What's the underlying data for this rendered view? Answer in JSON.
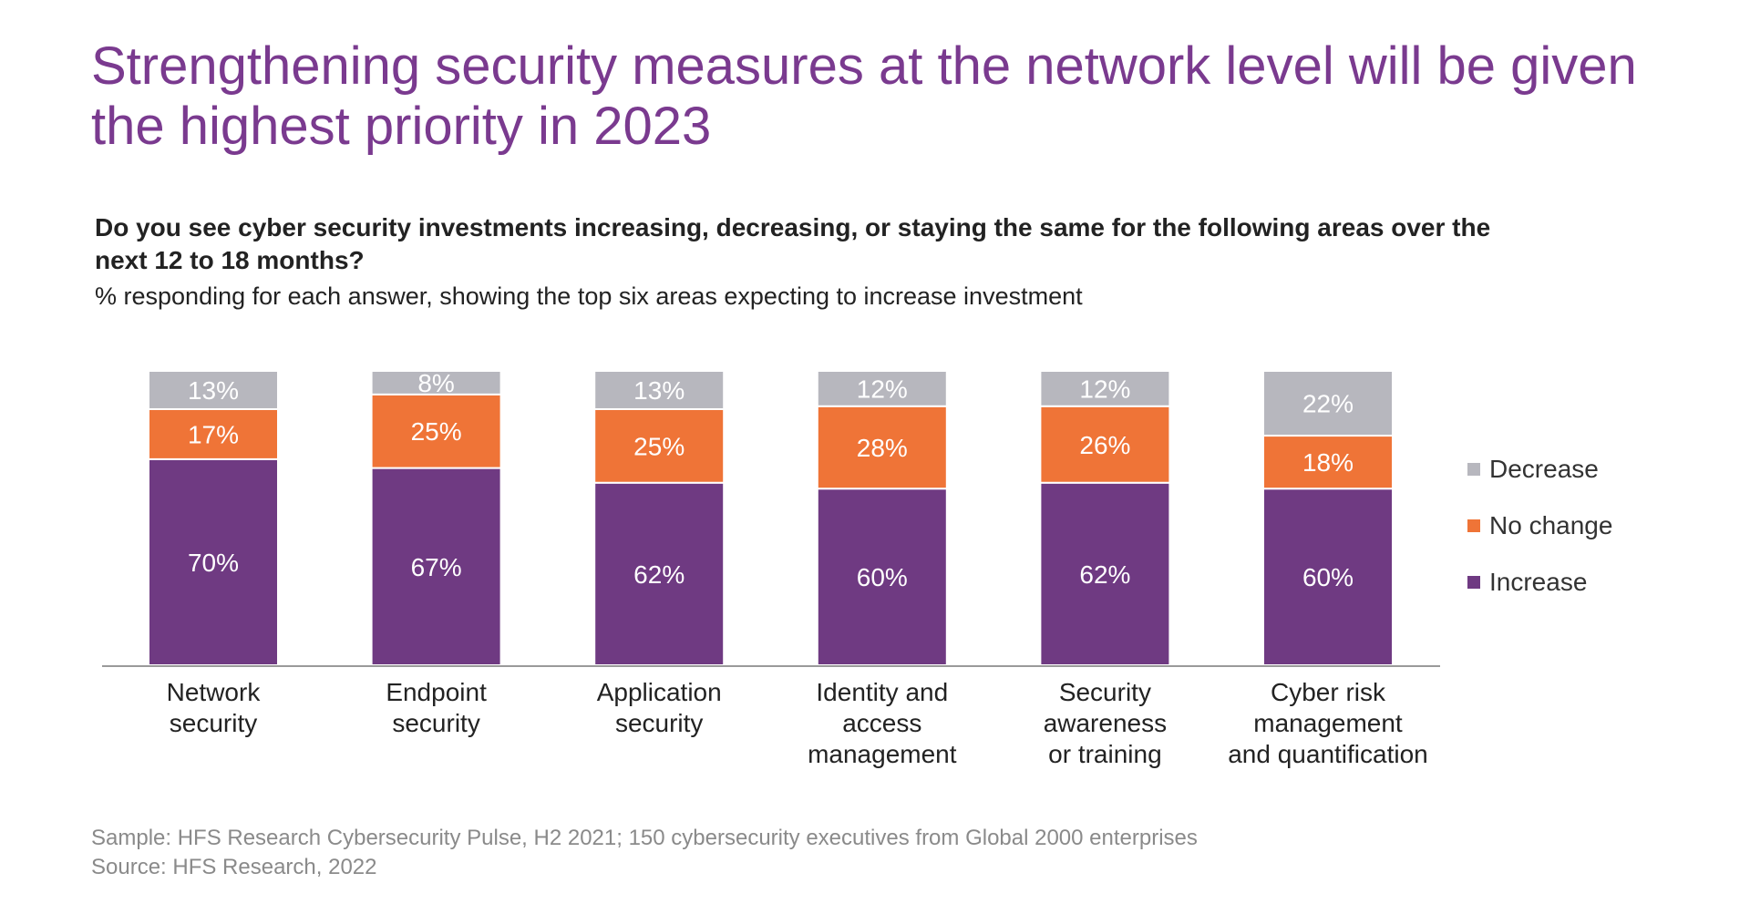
{
  "title": "Strengthening security measures at the network level will be given the highest priority in 2023",
  "question": "Do you see cyber security investments increasing, decreasing, or staying the same for the following areas over the next 12 to 18 months?",
  "subtitle": "% responding for each answer, showing the top six areas expecting to increase investment",
  "footnotes": {
    "sample": "Sample: HFS Research Cybersecurity Pulse, H2 2021; 150 cybersecurity executives from Global 2000 enterprises",
    "source": "Source: HFS Research, 2022"
  },
  "colors": {
    "increase": "#6f3a82",
    "no_change": "#ef7437",
    "decrease": "#b7b7be",
    "title": "#7a3a8f",
    "axis": "#9a9a9a"
  },
  "chart_data": {
    "type": "bar",
    "stacked": true,
    "categories": [
      [
        "Network",
        "security"
      ],
      [
        "Endpoint",
        "security"
      ],
      [
        "Application",
        "security"
      ],
      [
        "Identity and",
        "access",
        "management"
      ],
      [
        "Security",
        "awareness",
        "or training"
      ],
      [
        "Cyber risk",
        "management",
        "and quantification"
      ]
    ],
    "series": [
      {
        "name": "Increase",
        "key": "increase",
        "values": [
          70,
          67,
          62,
          60,
          62,
          60
        ],
        "labels": [
          "70%",
          "67%",
          "62%",
          "60%",
          "62%",
          "60%"
        ]
      },
      {
        "name": "No change",
        "key": "no_change",
        "values": [
          17,
          25,
          25,
          28,
          26,
          18
        ],
        "labels": [
          "17%",
          "25%",
          "25%",
          "28%",
          "26%",
          "18%"
        ]
      },
      {
        "name": "Decrease",
        "key": "decrease",
        "values": [
          13,
          8,
          13,
          12,
          12,
          22
        ],
        "labels": [
          "13%",
          "8%",
          "13%",
          "12%",
          "12%",
          "22%"
        ]
      }
    ],
    "legend_order": [
      "Decrease",
      "No change",
      "Increase"
    ],
    "legend_position": "right",
    "ylim": [
      0,
      100
    ],
    "grid": false
  }
}
